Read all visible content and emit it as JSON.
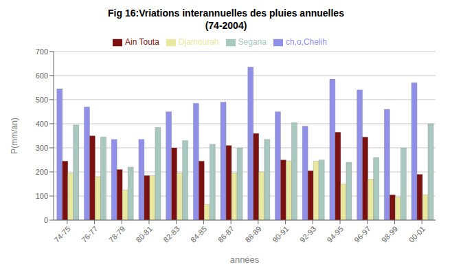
{
  "chart_data": {
    "type": "bar",
    "title": "Fig 16:Vriations interannuelles des pluies annuelles\n(74-2004)",
    "xlabel": "années",
    "ylabel": "P(mm/an)",
    "categories": [
      "74-75",
      "76-77",
      "78-79",
      "80-81",
      "82-83",
      "84-85",
      "86-87",
      "88-89",
      "90-91",
      "92-93",
      "94-95",
      "96-97",
      "98-99",
      "00-01"
    ],
    "series": [
      {
        "name": "ch,o,Chelih",
        "color": "#9090E8",
        "values": [
          545,
          470,
          335,
          335,
          450,
          485,
          490,
          635,
          450,
          390,
          585,
          540,
          460,
          570
        ]
      },
      {
        "name": "Ain Touta",
        "color": "#7B1010",
        "values": [
          245,
          350,
          210,
          185,
          300,
          245,
          310,
          360,
          250,
          205,
          365,
          345,
          105,
          190
        ]
      },
      {
        "name": "Djamourah",
        "color": "#E8E8A0",
        "values": [
          195,
          180,
          125,
          185,
          195,
          65,
          195,
          200,
          245,
          245,
          150,
          170,
          95,
          105
        ]
      },
      {
        "name": "Segana",
        "color": "#A8C8C0",
        "values": [
          395,
          345,
          220,
          385,
          330,
          315,
          300,
          335,
          405,
          250,
          240,
          260,
          300,
          400
        ]
      }
    ],
    "ylim": [
      0,
      700
    ],
    "yticks": [
      0,
      100,
      200,
      300,
      400,
      500,
      600,
      700
    ],
    "grid": true,
    "legend": "top"
  }
}
